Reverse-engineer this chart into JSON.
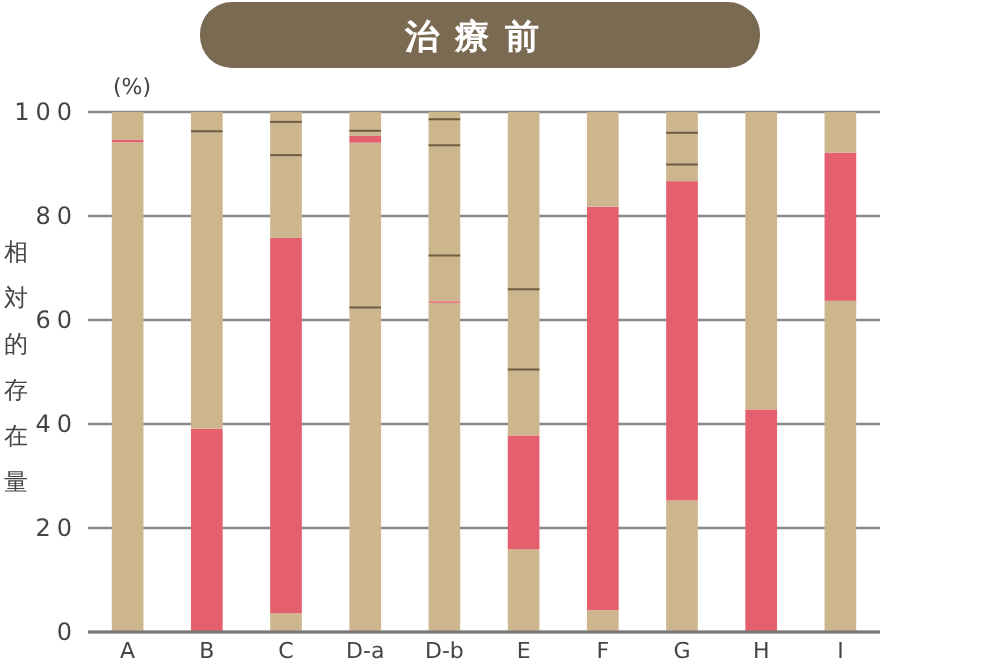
{
  "chart_data": {
    "type": "bar",
    "stacked": true,
    "title": "治療前",
    "ylabel": "相対的存在量",
    "annotations": [
      "(%)"
    ],
    "categories": [
      "A",
      "B",
      "C",
      "D-a",
      "D-b",
      "E",
      "F",
      "G",
      "H",
      "I"
    ],
    "ylim": [
      0,
      100
    ],
    "yticks": [
      0,
      20,
      40,
      60,
      80,
      100
    ],
    "grid": "y",
    "series": [
      {
        "values": [
          94.2,
          39.1,
          3.6,
          62.4,
          63.3,
          15.9,
          4.2,
          25.3,
          42.8,
          63.7
        ],
        "colors": [
          "#cdb68d",
          "#e5606e",
          "#cdb68d",
          "#cdb68d",
          "#cdb68d",
          "#cdb68d",
          "#cdb68d",
          "#cdb68d",
          "#e5606e",
          "#cdb68d"
        ]
      },
      {
        "values": [
          0.5,
          57.2,
          72.2,
          31.7,
          0.3,
          21.9,
          77.6,
          61.4,
          57.2,
          28.5
        ],
        "colors": [
          "#e5606e",
          "#cdb68d",
          "#e5606e",
          "#cdb68d",
          "#e5606e",
          "#e5606e",
          "#e5606e",
          "#e5606e",
          "#cdb68d",
          "#e5606e"
        ]
      },
      {
        "values": [
          5.3,
          3.7,
          15.9,
          1.3,
          8.8,
          12.7,
          18.2,
          3.2,
          null,
          7.8
        ],
        "colors": [
          "#cdb68d",
          "#cdb68d",
          "#cdb68d",
          "#e5606e",
          "#cdb68d",
          "#cdb68d",
          "#cdb68d",
          "#cdb68d",
          null,
          "#cdb68d"
        ]
      },
      {
        "values": [
          null,
          null,
          6.4,
          1.0,
          21.2,
          15.4,
          null,
          6.1,
          null,
          null
        ],
        "color": "#cdb68d"
      },
      {
        "values": [
          null,
          null,
          1.9,
          3.6,
          5.0,
          34.1,
          null,
          4.0,
          null,
          null
        ],
        "color": "#cdb68d"
      },
      {
        "values": [
          null,
          null,
          null,
          null,
          1.4,
          null,
          null,
          null,
          null,
          null
        ],
        "color": "#cdb68d"
      }
    ]
  }
}
